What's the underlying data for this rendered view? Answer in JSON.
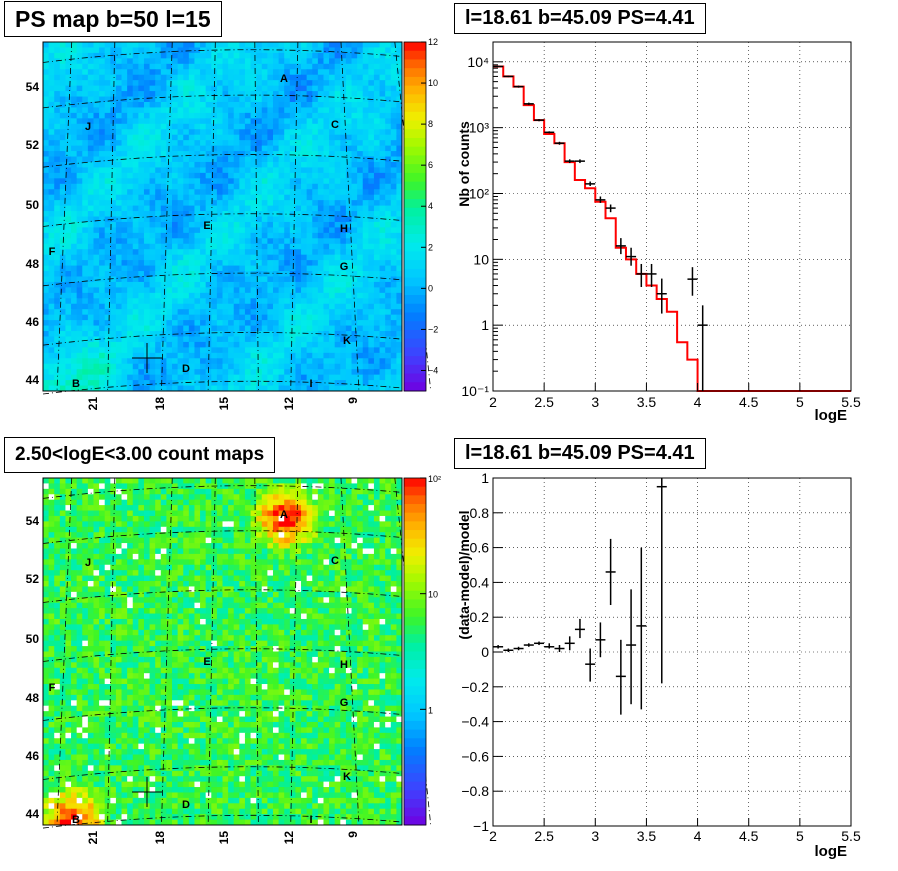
{
  "panels": {
    "map_top": {
      "title": "PS map b=50 l=15"
    },
    "spec_top": {
      "title": "l=18.61 b=45.09 PS=4.41"
    },
    "map_bottom": {
      "title": "2.50<logE<3.00 count maps"
    },
    "spec_bottom": {
      "title": "l=18.61 b=45.09 PS=4.41"
    }
  },
  "colors": {
    "model_line": "#ff0000",
    "data": "#000000"
  },
  "maps": {
    "y_ticks": [
      "54",
      "52",
      "50",
      "48",
      "46",
      "44"
    ],
    "x_ticks": [
      "21",
      "18",
      "15",
      "12",
      "9"
    ],
    "source_labels": [
      "A",
      "B",
      "C",
      "D",
      "E",
      "F",
      "G",
      "H",
      "J",
      "K",
      "I"
    ],
    "ps_colorbar_ticks": [
      "12",
      "10",
      "8",
      "6",
      "4",
      "2",
      "0",
      "−2",
      "−4"
    ],
    "ps_colorbar_range": [
      -5,
      12
    ],
    "count_colorbar_ticks": [
      "10²",
      "10",
      "1"
    ]
  },
  "chart_data": [
    {
      "type": "heatmap",
      "title": "PS map b=50 l=15",
      "ylim": [
        43.7,
        55.4
      ],
      "y_ticks": [
        54,
        52,
        50,
        48,
        46,
        44
      ],
      "x_ticks": [
        21,
        18,
        15,
        12,
        9
      ],
      "z_range": [
        -5,
        12
      ],
      "colorbar": true
    },
    {
      "type": "line",
      "title": "l=18.61 b=45.09 PS=4.41",
      "xlabel": "logE",
      "ylabel": "Nb of counts",
      "xlim": [
        2,
        5.5
      ],
      "ylim": [
        0.1,
        20000
      ],
      "y_scale": "log",
      "grid": true,
      "x_tick_labels": [
        "2",
        "2.5",
        "3",
        "3.5",
        "4",
        "4.5",
        "5",
        "5.5"
      ],
      "y_tick_labels": [
        "10⁻¹",
        "1",
        "10",
        "10²",
        "10³",
        "10⁴"
      ],
      "model": {
        "edges": [
          2.0,
          2.1,
          2.2,
          2.3,
          2.4,
          2.5,
          2.6,
          2.7,
          2.8,
          2.9,
          3.0,
          3.1,
          3.2,
          3.3,
          3.4,
          3.5,
          3.6,
          3.7,
          3.8,
          3.9,
          4.0,
          5.5
        ],
        "values": [
          8500,
          6000,
          4200,
          2200,
          1300,
          800,
          580,
          300,
          160,
          120,
          75,
          42,
          15,
          10,
          6,
          4,
          2.5,
          1.6,
          0.55,
          0.3,
          0.1
        ]
      },
      "data": {
        "x": [
          2.05,
          2.15,
          2.25,
          2.35,
          2.45,
          2.55,
          2.65,
          2.75,
          2.85,
          2.95,
          3.05,
          3.15,
          3.25,
          3.35,
          3.45,
          3.55,
          3.65,
          3.95,
          4.05
        ],
        "y": [
          8500,
          6000,
          4200,
          2300,
          1300,
          850,
          580,
          310,
          310,
          140,
          80,
          60,
          16,
          11,
          6,
          6,
          3,
          5,
          1
        ],
        "y_low": [
          8300,
          5850,
          4050,
          2200,
          1250,
          820,
          550,
          290,
          290,
          130,
          72,
          52,
          12,
          8,
          3.8,
          3.8,
          1.5,
          2.8,
          0.1
        ],
        "y_high": [
          8700,
          6150,
          4350,
          2400,
          1350,
          880,
          610,
          330,
          330,
          152,
          90,
          68,
          21,
          15,
          8.5,
          8.5,
          5.1,
          7.6,
          2
        ]
      }
    },
    {
      "type": "heatmap",
      "title": "2.50<logE<3.00 count maps",
      "ylim": [
        43.7,
        55.4
      ],
      "y_ticks": [
        54,
        52,
        50,
        48,
        46,
        44
      ],
      "x_ticks": [
        21,
        18,
        15,
        12,
        9
      ],
      "z_scale": "log",
      "z_range": [
        0.1,
        100
      ],
      "colorbar": true
    },
    {
      "type": "scatter",
      "title": "l=18.61 b=45.09 PS=4.41",
      "xlabel": "logE",
      "ylabel": "(data-model)/model",
      "xlim": [
        2,
        5.5
      ],
      "ylim": [
        -1,
        1
      ],
      "grid": true,
      "x_tick_labels": [
        "2",
        "2.5",
        "3",
        "3.5",
        "4",
        "4.5",
        "5",
        "5.5"
      ],
      "y_tick_labels": [
        "1",
        "0.8",
        "0.6",
        "0.4",
        "0.2",
        "0",
        "−0.2",
        "−0.4",
        "−0.6",
        "−0.8",
        "−1"
      ],
      "x": [
        2.05,
        2.15,
        2.25,
        2.35,
        2.45,
        2.55,
        2.65,
        2.75,
        2.85,
        2.95,
        3.05,
        3.15,
        3.25,
        3.35,
        3.45,
        3.65
      ],
      "y": [
        0.03,
        0.01,
        0.02,
        0.04,
        0.05,
        0.03,
        0.02,
        0.05,
        0.13,
        -0.07,
        0.07,
        0.46,
        -0.14,
        0.04,
        0.15,
        0.95
      ],
      "y_low": [
        0.02,
        0.0,
        0.01,
        0.03,
        0.04,
        0.02,
        0.0,
        0.01,
        0.08,
        -0.17,
        -0.03,
        0.27,
        -0.36,
        -0.3,
        -0.33,
        -0.18
      ],
      "y_high": [
        0.04,
        0.02,
        0.03,
        0.05,
        0.06,
        0.05,
        0.04,
        0.09,
        0.19,
        0.02,
        0.17,
        0.65,
        0.07,
        0.36,
        0.6,
        1.0
      ]
    }
  ]
}
